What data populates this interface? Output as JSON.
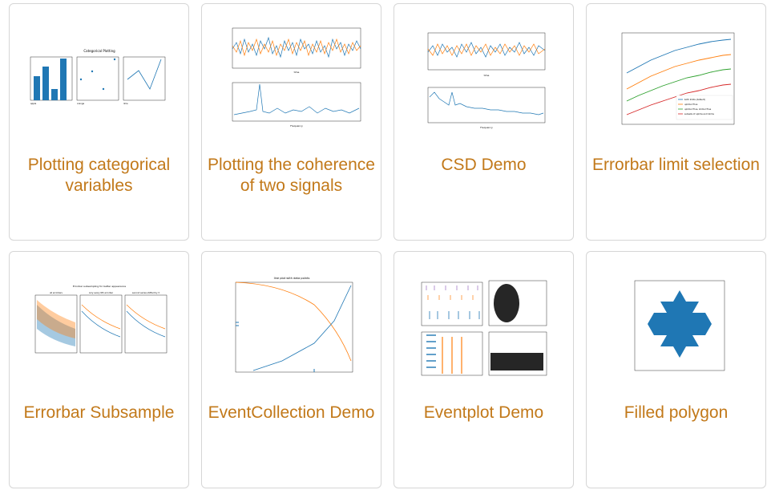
{
  "colors": {
    "title": "#c2791a",
    "blue": "#1f77b4",
    "orange": "#ff7f0e",
    "green": "#2ca02c",
    "red": "#d62728",
    "purple": "#9467bd",
    "border": "#d6d6d6"
  },
  "cards": [
    {
      "title": "Plotting categorical variables",
      "icon": "categorical-plot-thumbnail"
    },
    {
      "title": "Plotting the coherence of two signals",
      "icon": "coherence-plot-thumbnail"
    },
    {
      "title": "CSD Demo",
      "icon": "csd-plot-thumbnail"
    },
    {
      "title": "Errorbar limit selection",
      "icon": "errorbar-limits-thumbnail"
    },
    {
      "title": "Errorbar Subsample",
      "icon": "errorbar-subsample-thumbnail"
    },
    {
      "title": "EventCollection Demo",
      "icon": "eventcollection-thumbnail"
    },
    {
      "title": "Eventplot Demo",
      "icon": "eventplot-thumbnail"
    },
    {
      "title": "Filled polygon",
      "icon": "filled-polygon-thumbnail"
    }
  ],
  "thumb_text": {
    "categorical_title": "Categorical Plotting",
    "categorical_ticks": [
      "apple",
      "orange",
      "lemon",
      "lime"
    ],
    "coherence_ylabel_top": "s1 and s2",
    "coherence_xlabel_top": "time",
    "coherence_ylabel_bottom": "coherence",
    "coherence_xlabel_bottom": "Frequency",
    "csd_ylabel_top": "s1 and s2",
    "csd_xlabel_top": "time",
    "csd_ylabel_bottom": "CSD (dB)",
    "csd_xlabel_bottom": "Frequency",
    "errorbar_legend": [
      "both limits (default)",
      "uplims=True",
      "uplims=True, lolims=True",
      "subsets of uplims and lolims"
    ],
    "subsample_suptitle": "Errorbar subsampling for better appearance",
    "subsample_titles": [
      "all errorbars",
      "only every 6th errorbar",
      "second series shifted by 3"
    ],
    "event_title": "line plot with data points"
  }
}
